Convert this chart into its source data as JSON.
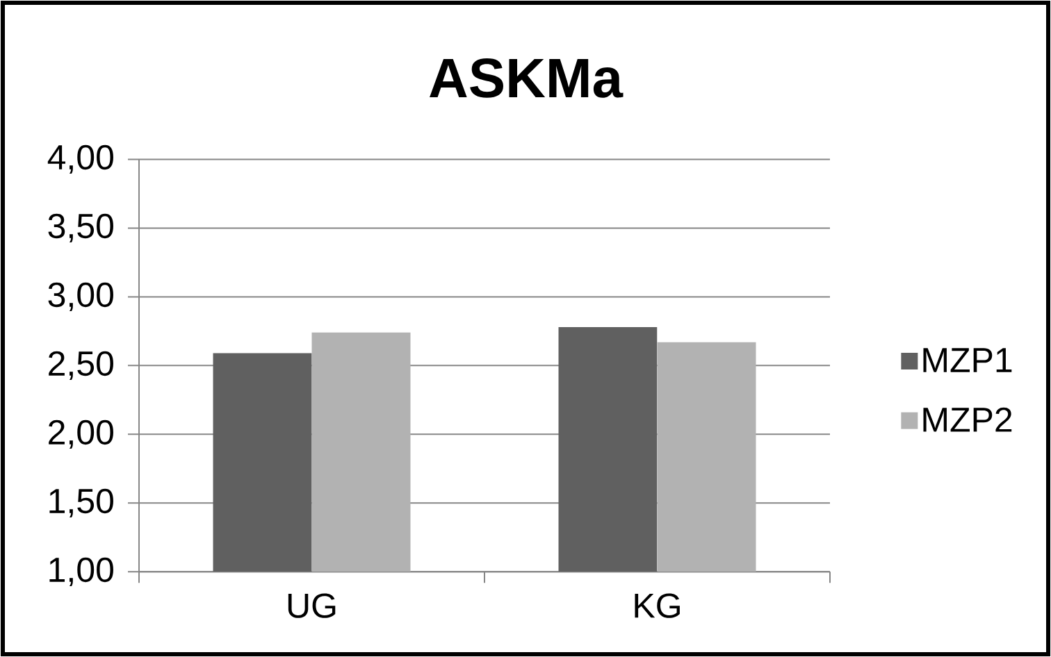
{
  "chart_data": {
    "type": "bar",
    "title": "ASKMa",
    "categories": [
      "UG",
      "KG"
    ],
    "series": [
      {
        "name": "MZP1",
        "color": "#606060",
        "values": [
          2.59,
          2.78
        ]
      },
      {
        "name": "MZP2",
        "color": "#b2b2b2",
        "values": [
          2.74,
          2.67
        ]
      }
    ],
    "ylim": [
      1,
      4
    ],
    "yticks": [
      {
        "value": 1,
        "label": "1,00"
      },
      {
        "value": 1.5,
        "label": "1,50"
      },
      {
        "value": 2,
        "label": "2,00"
      },
      {
        "value": 2.5,
        "label": "2,50"
      },
      {
        "value": 3,
        "label": "3,00"
      },
      {
        "value": 3.5,
        "label": "3,50"
      },
      {
        "value": 4,
        "label": "4,00"
      }
    ],
    "grid": "y",
    "legend": "right"
  }
}
